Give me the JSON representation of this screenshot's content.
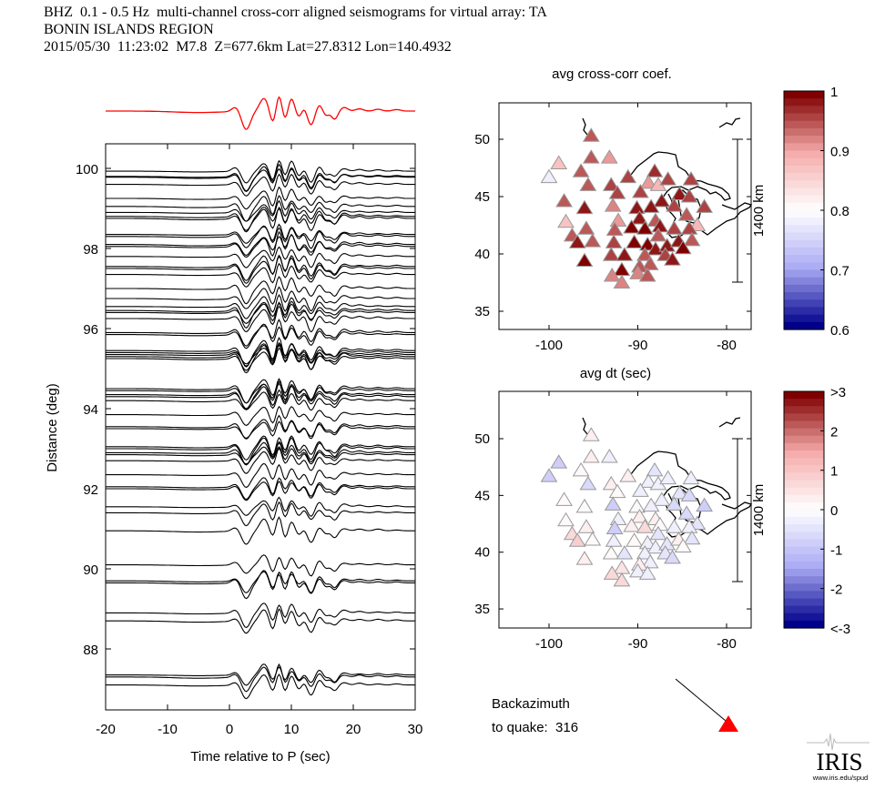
{
  "header": {
    "line1": "BHZ  0.1 - 0.5 Hz  multi-channel cross-corr aligned seismograms for virtual array: TA",
    "line2": "BONIN ISLANDS REGION",
    "line3": "2015/05/30  11:23:02  M7.8  Z=677.6km Lat=27.8312 Lon=140.4932"
  },
  "backazimuth": {
    "line1": "Backazimuth",
    "line2": "to quake:  316",
    "value": 316,
    "marker_color": "#ff0000"
  },
  "logo": {
    "text": "IRIS",
    "url_text": "www.iris.edu/spud"
  },
  "chart_data": [
    {
      "type": "line",
      "name": "record-section",
      "xlabel": "Time relative to P (sec)",
      "ylabel": "Distance (deg)",
      "xlim": [
        -20,
        30
      ],
      "ylim": [
        86.5,
        100.6
      ],
      "xticks": [
        -20,
        -10,
        0,
        10,
        20,
        30
      ],
      "yticks": [
        88,
        90,
        92,
        94,
        96,
        98,
        100
      ],
      "beam_color": "#ff0000",
      "trace_color": "#000000",
      "trace_distances": [
        99.93,
        99.8,
        99.78,
        99.6,
        99.25,
        99.05,
        98.9,
        98.8,
        98.75,
        98.35,
        98.3,
        98.1,
        98.05,
        97.8,
        97.55,
        97.5,
        97.35,
        97.0,
        96.75,
        96.55,
        96.45,
        96.4,
        96.25,
        95.9,
        95.85,
        95.45,
        95.4,
        95.35,
        95.3,
        95.25,
        94.5,
        94.45,
        94.35,
        94.3,
        94.2,
        93.85,
        93.55,
        93.5,
        93.05,
        93.0,
        92.9,
        92.85,
        92.7,
        92.35,
        92.05,
        92.0,
        91.55,
        91.4,
        90.95,
        90.1,
        89.7,
        89.65,
        88.9,
        88.7,
        87.35,
        87.3,
        87.1
      ]
    },
    {
      "type": "scatter",
      "name": "map-cc",
      "title": "avg cross-corr coef.",
      "xlim": [
        -105.6,
        -77.2
      ],
      "ylim": [
        33.4,
        53.2
      ],
      "xticks": [
        -100,
        -90,
        -80
      ],
      "yticks": [
        35,
        40,
        45,
        50
      ],
      "scale_bar": "1400 km",
      "colorbar": {
        "min": 0.6,
        "max": 1,
        "ticks": [
          "1",
          "0.9",
          "0.8",
          "0.7",
          "0.6"
        ],
        "low": "#00008b",
        "mid": "#ffffff",
        "high": "#800000",
        "center": 0.8
      }
    },
    {
      "type": "scatter",
      "name": "map-dt",
      "title": "avg dt (sec)",
      "xlim": [
        -105.6,
        -77.2
      ],
      "ylim": [
        33.4,
        53.2
      ],
      "xticks": [
        -100,
        -90,
        -80
      ],
      "yticks": [
        35,
        40,
        45,
        50
      ],
      "scale_bar": "1400 km",
      "colorbar": {
        "min": -3,
        "max": 3,
        "ticks": [
          ">3",
          "2",
          "1",
          "0",
          "-1",
          "-2",
          "<-3"
        ],
        "low": "#00008b",
        "mid": "#ffffff",
        "high": "#800000",
        "center": 0
      }
    }
  ],
  "stations": [
    {
      "lon": -95.25,
      "lat": 50.3,
      "cc": 0.95,
      "dt": 0.3
    },
    {
      "lon": -95.25,
      "lat": 48.4,
      "cc": 0.95,
      "dt": 0.3
    },
    {
      "lon": -93.2,
      "lat": 48.4,
      "cc": 0.9,
      "dt": -0.3
    },
    {
      "lon": -98.9,
      "lat": 47.9,
      "cc": 0.87,
      "dt": -0.8
    },
    {
      "lon": -100.0,
      "lat": 46.7,
      "cc": 0.78,
      "dt": -0.8
    },
    {
      "lon": -96.4,
      "lat": 47.2,
      "cc": 0.94,
      "dt": 0
    },
    {
      "lon": -95.6,
      "lat": 46.0,
      "cc": 0.94,
      "dt": -0.7
    },
    {
      "lon": -93.0,
      "lat": 46.0,
      "cc": 0.96,
      "dt": 0.2
    },
    {
      "lon": -92.3,
      "lat": 45.3,
      "cc": 0.96,
      "dt": 0
    },
    {
      "lon": -91.1,
      "lat": 46.7,
      "cc": 0.96,
      "dt": 0.3
    },
    {
      "lon": -88.1,
      "lat": 47.2,
      "cc": 0.97,
      "dt": -0.5
    },
    {
      "lon": -88.8,
      "lat": 46.2,
      "cc": 0.9,
      "dt": -0.3
    },
    {
      "lon": -87.7,
      "lat": 46.0,
      "cc": 0.88,
      "dt": -0.3
    },
    {
      "lon": -86.6,
      "lat": 46.5,
      "cc": 0.96,
      "dt": -0.2
    },
    {
      "lon": -84.0,
      "lat": 46.5,
      "cc": 0.96,
      "dt": -0.2
    },
    {
      "lon": -89.7,
      "lat": 45.4,
      "cc": 0.96,
      "dt": -0.3
    },
    {
      "lon": -87.3,
      "lat": 44.6,
      "cc": 0.98,
      "dt": -0.2
    },
    {
      "lon": -85.3,
      "lat": 45.2,
      "cc": 0.98,
      "dt": -0.5
    },
    {
      "lon": -84.2,
      "lat": 45.0,
      "cc": 0.96,
      "dt": -0.7
    },
    {
      "lon": -98.3,
      "lat": 44.6,
      "cc": 0.94,
      "dt": 0
    },
    {
      "lon": -96.0,
      "lat": 44.0,
      "cc": 0.98,
      "dt": 0
    },
    {
      "lon": -92.8,
      "lat": 44.2,
      "cc": 0.92,
      "dt": -0.8
    },
    {
      "lon": -90.1,
      "lat": 44.0,
      "cc": 0.98,
      "dt": -0.1
    },
    {
      "lon": -88.5,
      "lat": 44.1,
      "cc": 0.98,
      "dt": -0.3
    },
    {
      "lon": -85.9,
      "lat": 44.2,
      "cc": 0.96,
      "dt": -0.6
    },
    {
      "lon": -82.5,
      "lat": 44.1,
      "cc": 0.96,
      "dt": -0.9
    },
    {
      "lon": -98.1,
      "lat": 42.8,
      "cc": 0.87,
      "dt": 0
    },
    {
      "lon": -92.2,
      "lat": 42.9,
      "cc": 0.9,
      "dt": -0.3
    },
    {
      "lon": -89.8,
      "lat": 43.1,
      "cc": 0.98,
      "dt": 0.2
    },
    {
      "lon": -88.0,
      "lat": 42.9,
      "cc": 0.95,
      "dt": 0.3
    },
    {
      "lon": -84.5,
      "lat": 43.4,
      "cc": 0.95,
      "dt": -0.7
    },
    {
      "lon": -83.3,
      "lat": 42.5,
      "cc": 0.88,
      "dt": -0.5
    },
    {
      "lon": -95.8,
      "lat": 42.2,
      "cc": 0.94,
      "dt": 0.2
    },
    {
      "lon": -97.4,
      "lat": 41.6,
      "cc": 0.94,
      "dt": 0.6
    },
    {
      "lon": -96.8,
      "lat": 41.0,
      "cc": 0.98,
      "dt": 0.9
    },
    {
      "lon": -95.1,
      "lat": 41.1,
      "cc": 0.94,
      "dt": 0
    },
    {
      "lon": -92.6,
      "lat": 42.1,
      "cc": 0.94,
      "dt": -0.8
    },
    {
      "lon": -90.7,
      "lat": 42.3,
      "cc": 0.99,
      "dt": 0.2
    },
    {
      "lon": -89.2,
      "lat": 42.2,
      "cc": 0.99,
      "dt": 0.6
    },
    {
      "lon": -87.5,
      "lat": 42.4,
      "cc": 0.98,
      "dt": 0
    },
    {
      "lon": -85.9,
      "lat": 42.2,
      "cc": 0.96,
      "dt": -0.2
    },
    {
      "lon": -84.2,
      "lat": 42.2,
      "cc": 0.96,
      "dt": -0.3
    },
    {
      "lon": -92.7,
      "lat": 41.0,
      "cc": 0.96,
      "dt": -0.2
    },
    {
      "lon": -90.4,
      "lat": 41.0,
      "cc": 0.99,
      "dt": 0
    },
    {
      "lon": -88.9,
      "lat": 40.8,
      "cc": 0.99,
      "dt": -0.3
    },
    {
      "lon": -87.7,
      "lat": 41.6,
      "cc": 0.95,
      "dt": -0.4
    },
    {
      "lon": -88.0,
      "lat": 40.4,
      "cc": 0.98,
      "dt": -0.2
    },
    {
      "lon": -86.7,
      "lat": 40.7,
      "cc": 0.98,
      "dt": -0.5
    },
    {
      "lon": -85.4,
      "lat": 41.1,
      "cc": 0.98,
      "dt": 0.3
    },
    {
      "lon": -83.9,
      "lat": 41.2,
      "cc": 0.95,
      "dt": -0.4
    },
    {
      "lon": -84.9,
      "lat": 40.5,
      "cc": 0.99,
      "dt": 0
    },
    {
      "lon": -93.0,
      "lat": 39.9,
      "cc": 0.96,
      "dt": 0
    },
    {
      "lon": -91.5,
      "lat": 39.9,
      "cc": 0.98,
      "dt": -0.4
    },
    {
      "lon": -89.2,
      "lat": 39.9,
      "cc": 0.95,
      "dt": -0.3
    },
    {
      "lon": -86.9,
      "lat": 39.9,
      "cc": 0.96,
      "dt": -0.5
    },
    {
      "lon": -86.1,
      "lat": 39.5,
      "cc": 0.98,
      "dt": -0.6
    },
    {
      "lon": -96.0,
      "lat": 39.4,
      "cc": 0.99,
      "dt": 0.2
    },
    {
      "lon": -88.6,
      "lat": 39.1,
      "cc": 0.94,
      "dt": -0.3
    },
    {
      "lon": -89.8,
      "lat": 38.9,
      "cc": 0.94,
      "dt": 0.2
    },
    {
      "lon": -91.8,
      "lat": 38.6,
      "cc": 0.99,
      "dt": 0.5
    },
    {
      "lon": -90.0,
      "lat": 38.3,
      "cc": 0.92,
      "dt": -0.2
    },
    {
      "lon": -88.9,
      "lat": 38.1,
      "cc": 0.95,
      "dt": -0.3
    },
    {
      "lon": -92.9,
      "lat": 38.1,
      "cc": 0.92,
      "dt": 0.7
    },
    {
      "lon": -91.8,
      "lat": 37.5,
      "cc": 0.92,
      "dt": 0.6
    }
  ]
}
